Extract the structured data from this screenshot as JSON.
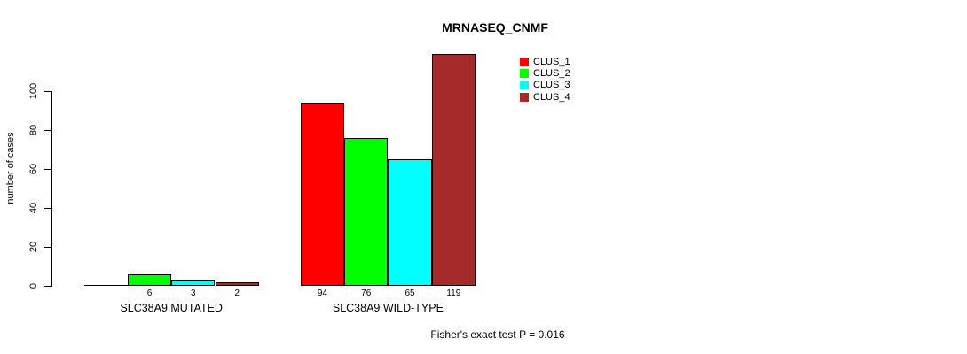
{
  "chart_data": {
    "type": "bar",
    "title": "MRNASEQ_CNMF",
    "ylabel": "number of cases",
    "annotation": "Fisher's exact test P = 0.016",
    "yaxis": {
      "ticks": [
        0,
        20,
        40,
        60,
        80,
        100
      ],
      "range_shown_by_axis": [
        0,
        100
      ],
      "grid": false
    },
    "series": [
      {
        "name": "CLUS_1",
        "color": "#FF0000"
      },
      {
        "name": "CLUS_2",
        "color": "#00FF00"
      },
      {
        "name": "CLUS_3",
        "color": "#00FFFF"
      },
      {
        "name": "CLUS_4",
        "color": "#A52A2A"
      }
    ],
    "categories": [
      "SLC38A9 MUTATED",
      "SLC38A9 WILD-TYPE"
    ],
    "groups": [
      {
        "label": "SLC38A9 MUTATED",
        "values": [
          0,
          6,
          3,
          2
        ]
      },
      {
        "label": "SLC38A9 WILD-TYPE",
        "values": [
          94,
          76,
          65,
          119
        ]
      }
    ],
    "value_labels": {
      "shown_under_bars": true,
      "zero_bars_unlabeled": true
    },
    "legend_position": "top-right"
  }
}
